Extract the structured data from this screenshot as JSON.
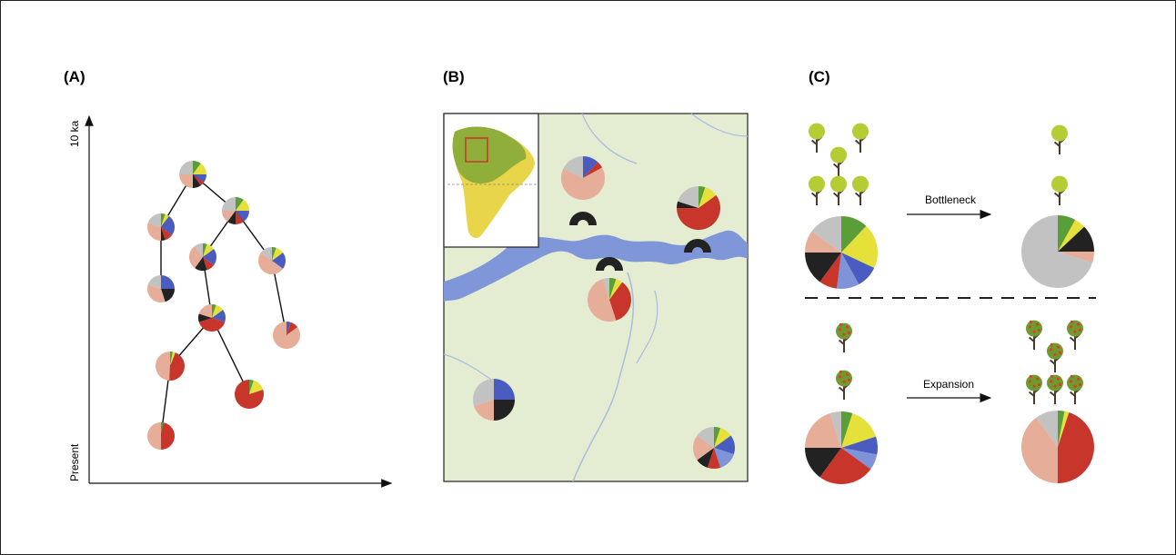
{
  "palette": {
    "g": "#5a9e3a",
    "y": "#e6e03a",
    "b": "#4a5cc0",
    "l": "#7f93d8",
    "r": "#c8352b",
    "k": "#222222",
    "s": "#e6ad98",
    "a": "#c2c2c2"
  },
  "panels": {
    "A": {
      "label": "(A)",
      "axis_top": "10 ka",
      "axis_bottom": "Present",
      "pies": [
        {
          "values": [
            10,
            15,
            10,
            5,
            10,
            25,
            25
          ],
          "colors": [
            "g",
            "y",
            "b",
            "r",
            "k",
            "s",
            "a"
          ]
        },
        {
          "values": [
            5,
            5,
            25,
            10,
            5,
            30,
            20
          ],
          "colors": [
            "g",
            "y",
            "b",
            "r",
            "k",
            "s",
            "a"
          ]
        },
        {
          "values": [
            10,
            15,
            15,
            10,
            10,
            15,
            25
          ],
          "colors": [
            "g",
            "y",
            "b",
            "r",
            "k",
            "s",
            "a"
          ]
        },
        {
          "values": [
            5,
            10,
            20,
            10,
            15,
            30,
            10
          ],
          "colors": [
            "g",
            "y",
            "b",
            "r",
            "k",
            "s",
            "a"
          ]
        },
        {
          "values": [
            5,
            10,
            20,
            50,
            15
          ],
          "colors": [
            "g",
            "y",
            "b",
            "s",
            "a"
          ]
        },
        {
          "values": [
            25,
            20,
            35,
            20
          ],
          "colors": [
            "b",
            "k",
            "s",
            "a"
          ]
        },
        {
          "values": [
            5,
            10,
            15,
            40,
            10,
            20
          ],
          "colors": [
            "g",
            "y",
            "b",
            "r",
            "k",
            "s"
          ]
        },
        {
          "values": [
            5,
            10,
            85
          ],
          "colors": [
            "b",
            "r",
            "s"
          ]
        },
        {
          "values": [
            3,
            3,
            45,
            49
          ],
          "colors": [
            "g",
            "y",
            "r",
            "s"
          ]
        },
        {
          "values": [
            5,
            15,
            80
          ],
          "colors": [
            "g",
            "y",
            "r"
          ]
        },
        {
          "values": [
            3,
            47,
            50
          ],
          "colors": [
            "g",
            "r",
            "s"
          ]
        }
      ]
    },
    "B": {
      "label": "(B)",
      "pies": [
        {
          "values": [
            12,
            5,
            65,
            18
          ],
          "colors": [
            "b",
            "r",
            "s",
            "a"
          ]
        },
        {
          "values": [
            5,
            10,
            60,
            5,
            20
          ],
          "colors": [
            "g",
            "y",
            "r",
            "k",
            "a"
          ]
        },
        {
          "values": [
            5,
            5,
            35,
            50,
            5
          ],
          "colors": [
            "g",
            "y",
            "r",
            "s",
            "a"
          ]
        },
        {
          "values": [
            25,
            25,
            20,
            30
          ],
          "colors": [
            "b",
            "k",
            "s",
            "a"
          ]
        },
        {
          "values": [
            5,
            10,
            15,
            15,
            10,
            10,
            20,
            15
          ],
          "colors": [
            "g",
            "y",
            "b",
            "l",
            "r",
            "k",
            "s",
            "a"
          ]
        }
      ]
    },
    "C": {
      "label": "(C)",
      "bottleneck": "Bottleneck",
      "expansion": "Expansion",
      "pies": [
        {
          "values": [
            12,
            20,
            10,
            10,
            8,
            15,
            10,
            15
          ],
          "colors": [
            "g",
            "y",
            "b",
            "l",
            "r",
            "k",
            "s",
            "a"
          ]
        },
        {
          "values": [
            8,
            5,
            12,
            5,
            70
          ],
          "colors": [
            "g",
            "y",
            "k",
            "s",
            "a"
          ]
        },
        {
          "values": [
            5,
            15,
            8,
            7,
            25,
            15,
            20,
            5
          ],
          "colors": [
            "g",
            "y",
            "b",
            "l",
            "r",
            "k",
            "s",
            "a"
          ]
        },
        {
          "values": [
            3,
            2,
            45,
            40,
            10
          ],
          "colors": [
            "g",
            "y",
            "r",
            "s",
            "a"
          ]
        }
      ]
    }
  }
}
